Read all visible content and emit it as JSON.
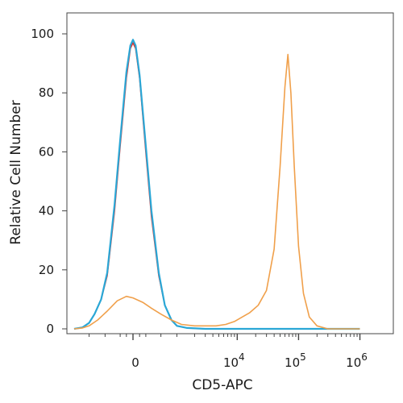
{
  "chart_data": {
    "type": "line",
    "xlabel": "CD5-APC",
    "ylabel": "Relative Cell Number",
    "ylim": [
      0,
      100
    ],
    "y_ticks": [
      "0",
      "20",
      "40",
      "60",
      "80",
      "100"
    ],
    "x_ticks": [
      {
        "base": "0",
        "exp": ""
      },
      {
        "base": "10",
        "exp": "4"
      },
      {
        "base": "10",
        "exp": "5"
      },
      {
        "base": "10",
        "exp": "6"
      }
    ],
    "x_scale": "biexponential",
    "grid": false,
    "series": [
      {
        "color": "#e0302a",
        "points": [
          [
            -1800,
            0
          ],
          [
            -1300,
            0.5
          ],
          [
            -1000,
            2
          ],
          [
            -800,
            5
          ],
          [
            -600,
            10
          ],
          [
            -450,
            18
          ],
          [
            -300,
            40
          ],
          [
            -200,
            62
          ],
          [
            -100,
            85
          ],
          [
            -40,
            95
          ],
          [
            0,
            97
          ],
          [
            40,
            95
          ],
          [
            100,
            85
          ],
          [
            200,
            60
          ],
          [
            300,
            38
          ],
          [
            450,
            18
          ],
          [
            600,
            8
          ],
          [
            800,
            3
          ],
          [
            1000,
            1
          ],
          [
            1500,
            0.3
          ],
          [
            3000,
            0
          ],
          [
            10000,
            0
          ],
          [
            100000,
            0
          ],
          [
            1000000,
            0
          ]
        ]
      },
      {
        "color": "#2aa7d6",
        "points": [
          [
            -1800,
            0
          ],
          [
            -1300,
            0.5
          ],
          [
            -1000,
            2
          ],
          [
            -800,
            5
          ],
          [
            -600,
            10
          ],
          [
            -450,
            19
          ],
          [
            -300,
            42
          ],
          [
            -200,
            64
          ],
          [
            -100,
            87
          ],
          [
            -40,
            96
          ],
          [
            0,
            98
          ],
          [
            40,
            96
          ],
          [
            100,
            86
          ],
          [
            200,
            62
          ],
          [
            300,
            40
          ],
          [
            450,
            19
          ],
          [
            600,
            8
          ],
          [
            800,
            3
          ],
          [
            1000,
            1
          ],
          [
            1500,
            0.3
          ],
          [
            3000,
            0
          ],
          [
            10000,
            0
          ],
          [
            100000,
            0
          ],
          [
            1000000,
            0
          ]
        ]
      },
      {
        "color": "#f0a04b",
        "points": [
          [
            -1800,
            0
          ],
          [
            -1300,
            0.3
          ],
          [
            -1000,
            1
          ],
          [
            -700,
            3
          ],
          [
            -450,
            6
          ],
          [
            -250,
            9.5
          ],
          [
            -100,
            11
          ],
          [
            0,
            10.5
          ],
          [
            150,
            9
          ],
          [
            300,
            7
          ],
          [
            500,
            5
          ],
          [
            800,
            3
          ],
          [
            1200,
            1.5
          ],
          [
            2000,
            1
          ],
          [
            3000,
            1
          ],
          [
            4500,
            1
          ],
          [
            6500,
            1.5
          ],
          [
            9000,
            2.5
          ],
          [
            12000,
            4
          ],
          [
            16000,
            5.5
          ],
          [
            22000,
            8
          ],
          [
            30000,
            13
          ],
          [
            40000,
            27
          ],
          [
            50000,
            55
          ],
          [
            60000,
            82
          ],
          [
            67000,
            93
          ],
          [
            75000,
            80
          ],
          [
            85000,
            55
          ],
          [
            100000,
            28
          ],
          [
            120000,
            12
          ],
          [
            150000,
            4
          ],
          [
            200000,
            1
          ],
          [
            300000,
            0
          ],
          [
            1000000,
            0
          ]
        ]
      }
    ]
  }
}
